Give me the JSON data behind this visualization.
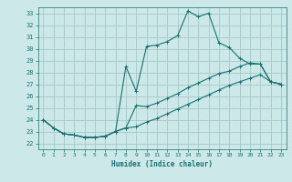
{
  "xlabel": "Humidex (Indice chaleur)",
  "ylabel": "",
  "bg_color": "#cce8e8",
  "grid_color": "#aacccc",
  "line_color": "#1a7070",
  "xlim": [
    -0.5,
    23.5
  ],
  "ylim": [
    21.5,
    33.5
  ],
  "xticks": [
    0,
    1,
    2,
    3,
    4,
    5,
    6,
    7,
    8,
    9,
    10,
    11,
    12,
    13,
    14,
    15,
    16,
    17,
    18,
    19,
    20,
    21,
    22,
    23
  ],
  "yticks": [
    22,
    23,
    24,
    25,
    26,
    27,
    28,
    29,
    30,
    31,
    32,
    33
  ],
  "line1_x": [
    0,
    1,
    2,
    3,
    4,
    5,
    6,
    7,
    8,
    9,
    10,
    11,
    12,
    13,
    14,
    15,
    16,
    17,
    18,
    19,
    20,
    21,
    22,
    23
  ],
  "line1_y": [
    24.0,
    23.3,
    22.8,
    22.7,
    22.5,
    22.5,
    22.6,
    23.0,
    28.5,
    26.4,
    30.2,
    30.3,
    30.6,
    31.1,
    33.2,
    32.7,
    33.0,
    30.5,
    30.1,
    29.2,
    28.7,
    28.7,
    27.2,
    27.0
  ],
  "line2_x": [
    0,
    1,
    2,
    3,
    4,
    5,
    6,
    7,
    8,
    9,
    10,
    11,
    12,
    13,
    14,
    15,
    16,
    17,
    18,
    19,
    20,
    21,
    22,
    23
  ],
  "line2_y": [
    24.0,
    23.3,
    22.8,
    22.7,
    22.5,
    22.5,
    22.6,
    23.0,
    23.3,
    25.2,
    25.1,
    25.4,
    25.8,
    26.2,
    26.7,
    27.1,
    27.5,
    27.9,
    28.1,
    28.5,
    28.8,
    28.7,
    27.2,
    27.0
  ],
  "line3_x": [
    0,
    1,
    2,
    3,
    4,
    5,
    6,
    7,
    8,
    9,
    10,
    11,
    12,
    13,
    14,
    15,
    16,
    17,
    18,
    19,
    20,
    21,
    22,
    23
  ],
  "line3_y": [
    24.0,
    23.3,
    22.8,
    22.7,
    22.5,
    22.5,
    22.6,
    23.0,
    23.3,
    23.4,
    23.8,
    24.1,
    24.5,
    24.9,
    25.3,
    25.7,
    26.1,
    26.5,
    26.9,
    27.2,
    27.5,
    27.8,
    27.2,
    27.0
  ]
}
